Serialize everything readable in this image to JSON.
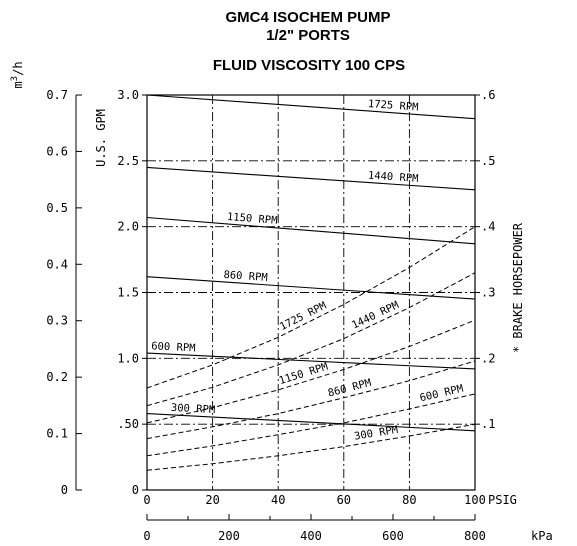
{
  "chart_data": {
    "type": "line",
    "title_lines": [
      "GMC4 ISOCHEM PUMP",
      "1/2\" PORTS",
      "FLUID VISCOSITY 100 CPS"
    ],
    "x": {
      "label": "PSIG",
      "range": [
        0,
        100
      ],
      "ticks": [
        "0",
        "20",
        "40",
        "60",
        "80",
        "100"
      ]
    },
    "x2": {
      "label": "kPa",
      "range": [
        0,
        800
      ],
      "ticks": [
        "0",
        "200",
        "400",
        "600",
        "800"
      ]
    },
    "y_left": {
      "label": "U.S. GPM",
      "range": [
        0,
        3.0
      ],
      "ticks": [
        {
          "v": 0,
          "t": "0"
        },
        {
          "v": 0.5,
          "t": ".50"
        },
        {
          "v": 1.0,
          "t": "1.0"
        },
        {
          "v": 1.5,
          "t": "1.5"
        },
        {
          "v": 2.0,
          "t": "2.0"
        },
        {
          "v": 2.5,
          "t": "2.5"
        },
        {
          "v": 3.0,
          "t": "3.0"
        }
      ]
    },
    "y_outer": {
      "label": "m3/h",
      "label_main": "m",
      "label_sup": "3",
      "label_rest": "/h",
      "range": [
        0,
        0.7
      ],
      "ticks": [
        "0",
        "0.1",
        "0.2",
        "0.3",
        "0.4",
        "0.5",
        "0.6",
        "0.7"
      ]
    },
    "y_right": {
      "label": "* BRAKE HORSEPOWER",
      "range": [
        0,
        0.6
      ],
      "ticks": [
        {
          "v": 0.1,
          "t": ".1"
        },
        {
          "v": 0.2,
          "t": ".2"
        },
        {
          "v": 0.3,
          "t": ".3"
        },
        {
          "v": 0.4,
          "t": ".4"
        },
        {
          "v": 0.5,
          "t": ".5"
        },
        {
          "v": 0.6,
          "t": ".6"
        }
      ]
    },
    "flow_series": [
      {
        "name": "1725 RPM",
        "x": [
          0,
          100
        ],
        "y": [
          3.0,
          2.82
        ]
      },
      {
        "name": "1440 RPM",
        "x": [
          0,
          100
        ],
        "y": [
          2.45,
          2.28
        ]
      },
      {
        "name": "1150 RPM",
        "x": [
          0,
          100
        ],
        "y": [
          2.07,
          1.87
        ]
      },
      {
        "name": "860 RPM",
        "x": [
          0,
          100
        ],
        "y": [
          1.62,
          1.45
        ]
      },
      {
        "name": "600 RPM",
        "x": [
          0,
          100
        ],
        "y": [
          1.04,
          0.92
        ]
      },
      {
        "name": "300 RPM",
        "x": [
          0,
          100
        ],
        "y": [
          0.58,
          0.45
        ]
      }
    ],
    "power_series": [
      {
        "name": "1725 RPM",
        "x": [
          0,
          20,
          40,
          60,
          80,
          100
        ],
        "y": [
          0.155,
          0.19,
          0.232,
          0.282,
          0.338,
          0.4
        ]
      },
      {
        "name": "1440 RPM",
        "x": [
          0,
          20,
          40,
          60,
          80,
          100
        ],
        "y": [
          0.128,
          0.156,
          0.19,
          0.23,
          0.277,
          0.33
        ]
      },
      {
        "name": "1150 RPM",
        "x": [
          0,
          20,
          40,
          60,
          80,
          100
        ],
        "y": [
          0.102,
          0.125,
          0.152,
          0.183,
          0.218,
          0.258
        ]
      },
      {
        "name": "860 RPM",
        "x": [
          0,
          20,
          40,
          60,
          80,
          100
        ],
        "y": [
          0.078,
          0.096,
          0.116,
          0.14,
          0.166,
          0.196
        ]
      },
      {
        "name": "600 RPM",
        "x": [
          0,
          20,
          40,
          60,
          80,
          100
        ],
        "y": [
          0.052,
          0.067,
          0.084,
          0.102,
          0.123,
          0.146
        ]
      },
      {
        "name": "300 RPM",
        "x": [
          0,
          20,
          40,
          60,
          80,
          100
        ],
        "y": [
          0.03,
          0.04,
          0.052,
          0.066,
          0.082,
          0.1
        ]
      }
    ],
    "grid": true
  }
}
